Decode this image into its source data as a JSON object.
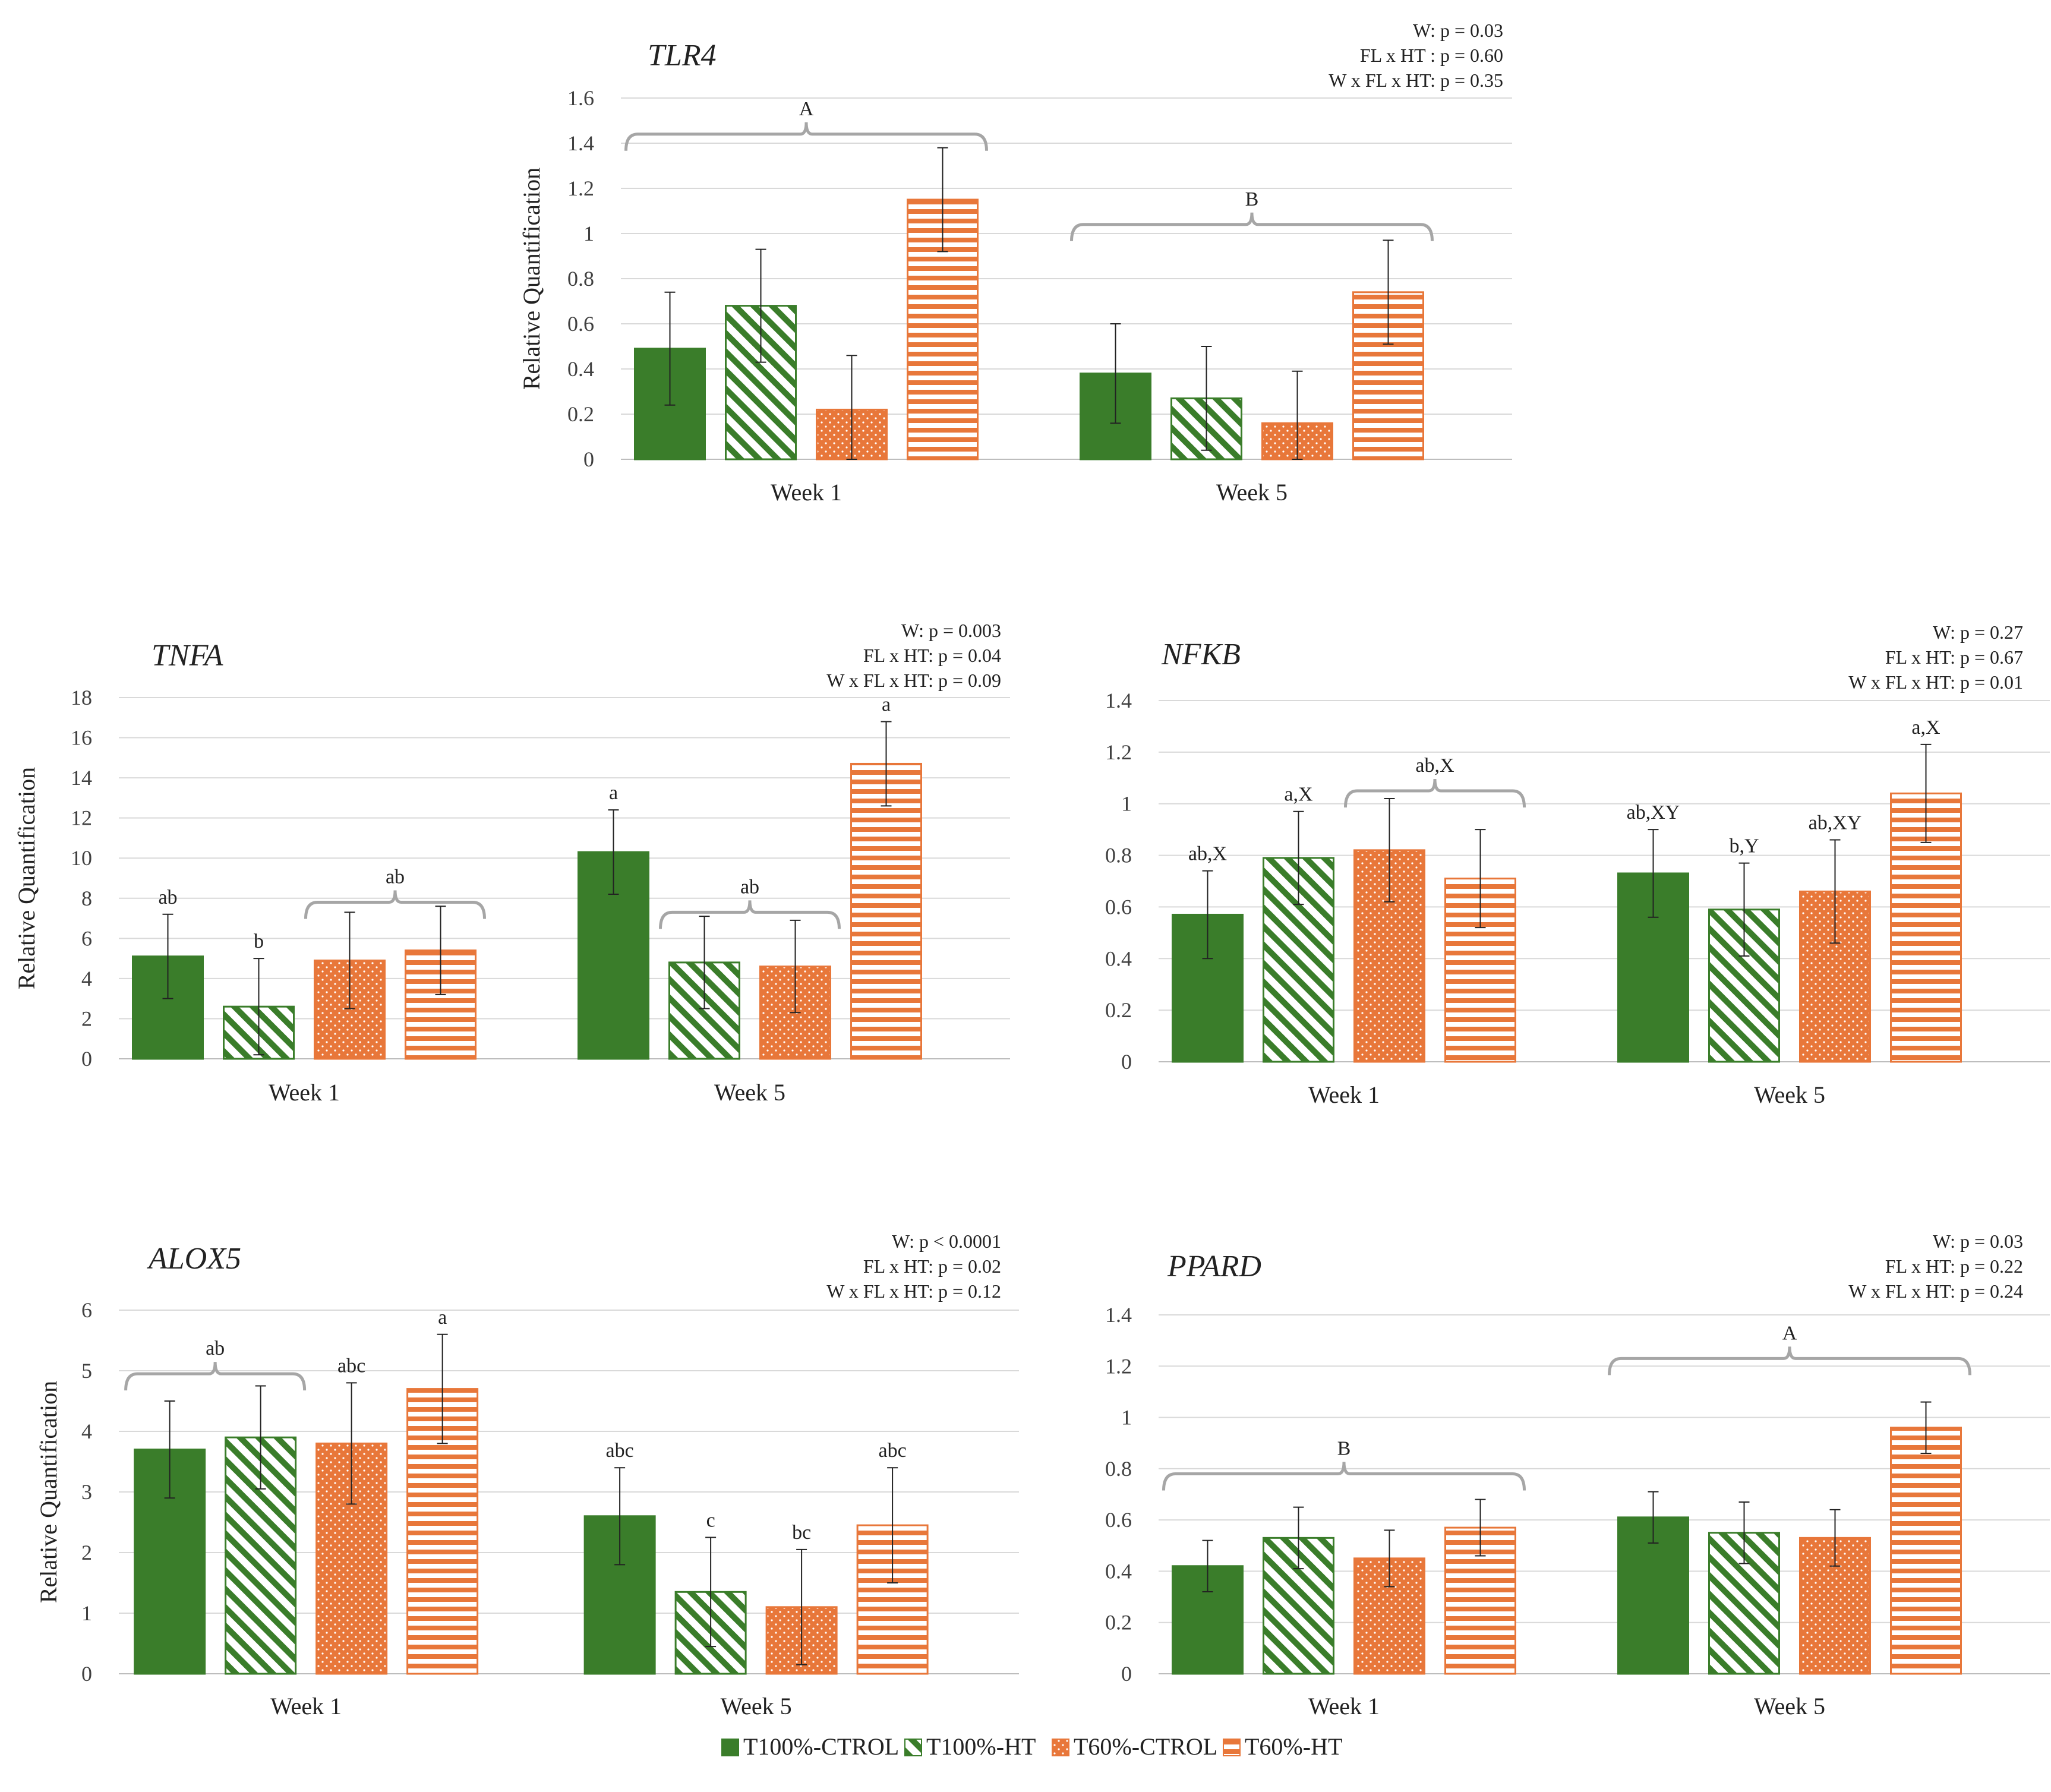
{
  "legend": [
    {
      "name": "T100%-CTROL",
      "color": "#3a7d2a",
      "pattern": "solid"
    },
    {
      "name": "T100%-HT",
      "color": "#3a7d2a",
      "pattern": "diagonal"
    },
    {
      "name": "T60%-CTROL",
      "color": "#e8773a",
      "pattern": "dots"
    },
    {
      "name": "T60%-HT",
      "color": "#e8773a",
      "pattern": "horizontal"
    }
  ],
  "chart_data": [
    {
      "type": "bar",
      "title": "TLR4",
      "ylabel": "Relative Quantification",
      "categories": [
        "Week 1",
        "Week 5"
      ],
      "yticks": [
        "0",
        "0.2",
        "0.4",
        "0.6",
        "0.8",
        "1",
        "1.2",
        "1.4",
        "1.6"
      ],
      "ylim": [
        0,
        1.6
      ],
      "stats": [
        "W: p = 0.03",
        "FL x HT : p = 0.60",
        "W x FL x HT: p = 0.35"
      ],
      "series": [
        {
          "name": "T100%-CTROL",
          "values": [
            0.49,
            0.38
          ],
          "errors": [
            0.25,
            0.22
          ],
          "letters": [
            "",
            ""
          ]
        },
        {
          "name": "T100%-HT",
          "values": [
            0.68,
            0.27
          ],
          "errors": [
            0.25,
            0.23
          ],
          "letters": [
            "",
            ""
          ]
        },
        {
          "name": "T60%-CTROL",
          "values": [
            0.22,
            0.16
          ],
          "errors": [
            0.24,
            0.23
          ],
          "letters": [
            "",
            ""
          ]
        },
        {
          "name": "T60%-HT",
          "values": [
            1.15,
            0.74
          ],
          "errors": [
            0.23,
            0.23
          ],
          "letters": [
            "",
            ""
          ]
        }
      ],
      "brackets": [
        {
          "category": 0,
          "from": 0,
          "to": 3,
          "label": "A",
          "y": 1.44
        },
        {
          "category": 1,
          "from": 0,
          "to": 3,
          "label": "B",
          "y": 1.04
        }
      ]
    },
    {
      "type": "bar",
      "title": "TNFA",
      "ylabel": "Relative Quantification",
      "categories": [
        "Week 1",
        "Week 5"
      ],
      "yticks": [
        "0",
        "2",
        "4",
        "6",
        "8",
        "10",
        "12",
        "14",
        "16",
        "18"
      ],
      "ylim": [
        0,
        18
      ],
      "stats": [
        "W: p = 0.003",
        "FL x HT: p = 0.04",
        "W x FL x HT: p = 0.09"
      ],
      "series": [
        {
          "name": "T100%-CTROL",
          "values": [
            5.1,
            10.3
          ],
          "errors": [
            2.1,
            2.1
          ],
          "letters": [
            "ab",
            "a"
          ]
        },
        {
          "name": "T100%-HT",
          "values": [
            2.6,
            4.8
          ],
          "errors": [
            2.4,
            2.3
          ],
          "letters": [
            "b",
            ""
          ]
        },
        {
          "name": "T60%-CTROL",
          "values": [
            4.9,
            4.6
          ],
          "errors": [
            2.4,
            2.3
          ],
          "letters": [
            "",
            ""
          ]
        },
        {
          "name": "T60%-HT",
          "values": [
            5.4,
            14.7
          ],
          "errors": [
            2.2,
            2.1
          ],
          "letters": [
            "",
            "a"
          ]
        }
      ],
      "brackets": [
        {
          "category": 0,
          "from": 2,
          "to": 3,
          "label": "ab",
          "y": 7.8
        },
        {
          "category": 1,
          "from": 1,
          "to": 2,
          "label": "ab",
          "y": 7.3
        }
      ]
    },
    {
      "type": "bar",
      "title": "NFKB",
      "ylabel": "",
      "categories": [
        "Week 1",
        "Week 5"
      ],
      "yticks": [
        "0",
        "0.2",
        "0.4",
        "0.6",
        "0.8",
        "1",
        "1.2",
        "1.4"
      ],
      "ylim": [
        0,
        1.4
      ],
      "stats": [
        "W: p = 0.27",
        "FL x HT: p = 0.67",
        "W x FL x HT: p = 0.01"
      ],
      "series": [
        {
          "name": "T100%-CTROL",
          "values": [
            0.57,
            0.73
          ],
          "errors": [
            0.17,
            0.17
          ],
          "letters": [
            "ab,X",
            "ab,XY"
          ]
        },
        {
          "name": "T100%-HT",
          "values": [
            0.79,
            0.59
          ],
          "errors": [
            0.18,
            0.18
          ],
          "letters": [
            "a,X",
            "b,Y"
          ]
        },
        {
          "name": "T60%-CTROL",
          "values": [
            0.82,
            0.66
          ],
          "errors": [
            0.2,
            0.2
          ],
          "letters": [
            "",
            "ab,XY"
          ]
        },
        {
          "name": "T60%-HT",
          "values": [
            0.71,
            1.04
          ],
          "errors": [
            0.19,
            0.19
          ],
          "letters": [
            "",
            "a,X"
          ]
        }
      ],
      "brackets": [
        {
          "category": 0,
          "from": 2,
          "to": 3,
          "label": "ab,X",
          "y": 1.05
        }
      ]
    },
    {
      "type": "bar",
      "title": "ALOX5",
      "ylabel": "Relative Quantification",
      "categories": [
        "Week 1",
        "Week 5"
      ],
      "yticks": [
        "0",
        "1",
        "2",
        "3",
        "4",
        "5",
        "6"
      ],
      "ylim": [
        0,
        6
      ],
      "stats": [
        "W: p < 0.0001",
        "FL x HT: p = 0.02",
        "W x FL x HT: p = 0.12"
      ],
      "series": [
        {
          "name": "T100%-CTROL",
          "values": [
            3.7,
            2.6
          ],
          "errors": [
            0.8,
            0.8
          ],
          "letters": [
            "",
            "abc"
          ]
        },
        {
          "name": "T100%-HT",
          "values": [
            3.9,
            1.35
          ],
          "errors": [
            0.85,
            0.9
          ],
          "letters": [
            "",
            "c"
          ]
        },
        {
          "name": "T60%-CTROL",
          "values": [
            3.8,
            1.1
          ],
          "errors": [
            1.0,
            0.95
          ],
          "letters": [
            "abc",
            "bc"
          ]
        },
        {
          "name": "T60%-HT",
          "values": [
            4.7,
            2.45
          ],
          "errors": [
            0.9,
            0.95
          ],
          "letters": [
            "a",
            "abc"
          ]
        }
      ],
      "brackets": [
        {
          "category": 0,
          "from": 0,
          "to": 1,
          "label": "ab",
          "y": 4.95
        }
      ]
    },
    {
      "type": "bar",
      "title": "PPARD",
      "ylabel": "",
      "categories": [
        "Week 1",
        "Week 5"
      ],
      "yticks": [
        "0",
        "0.2",
        "0.4",
        "0.6",
        "0.8",
        "1",
        "1.2",
        "1.4"
      ],
      "ylim": [
        0,
        1.4
      ],
      "stats": [
        "W: p = 0.03",
        "FL x HT: p = 0.22",
        "W x FL x HT: p = 0.24"
      ],
      "series": [
        {
          "name": "T100%-CTROL",
          "values": [
            0.42,
            0.61
          ],
          "errors": [
            0.1,
            0.1
          ],
          "letters": [
            "",
            ""
          ]
        },
        {
          "name": "T100%-HT",
          "values": [
            0.53,
            0.55
          ],
          "errors": [
            0.12,
            0.12
          ],
          "letters": [
            "",
            ""
          ]
        },
        {
          "name": "T60%-CTROL",
          "values": [
            0.45,
            0.53
          ],
          "errors": [
            0.11,
            0.11
          ],
          "letters": [
            "",
            ""
          ]
        },
        {
          "name": "T60%-HT",
          "values": [
            0.57,
            0.96
          ],
          "errors": [
            0.11,
            0.1
          ],
          "letters": [
            "",
            ""
          ]
        }
      ],
      "brackets": [
        {
          "category": 0,
          "from": 0,
          "to": 3,
          "label": "B",
          "y": 0.78
        },
        {
          "category": 1,
          "from": 0,
          "to": 3,
          "label": "A",
          "y": 1.23
        }
      ]
    }
  ]
}
